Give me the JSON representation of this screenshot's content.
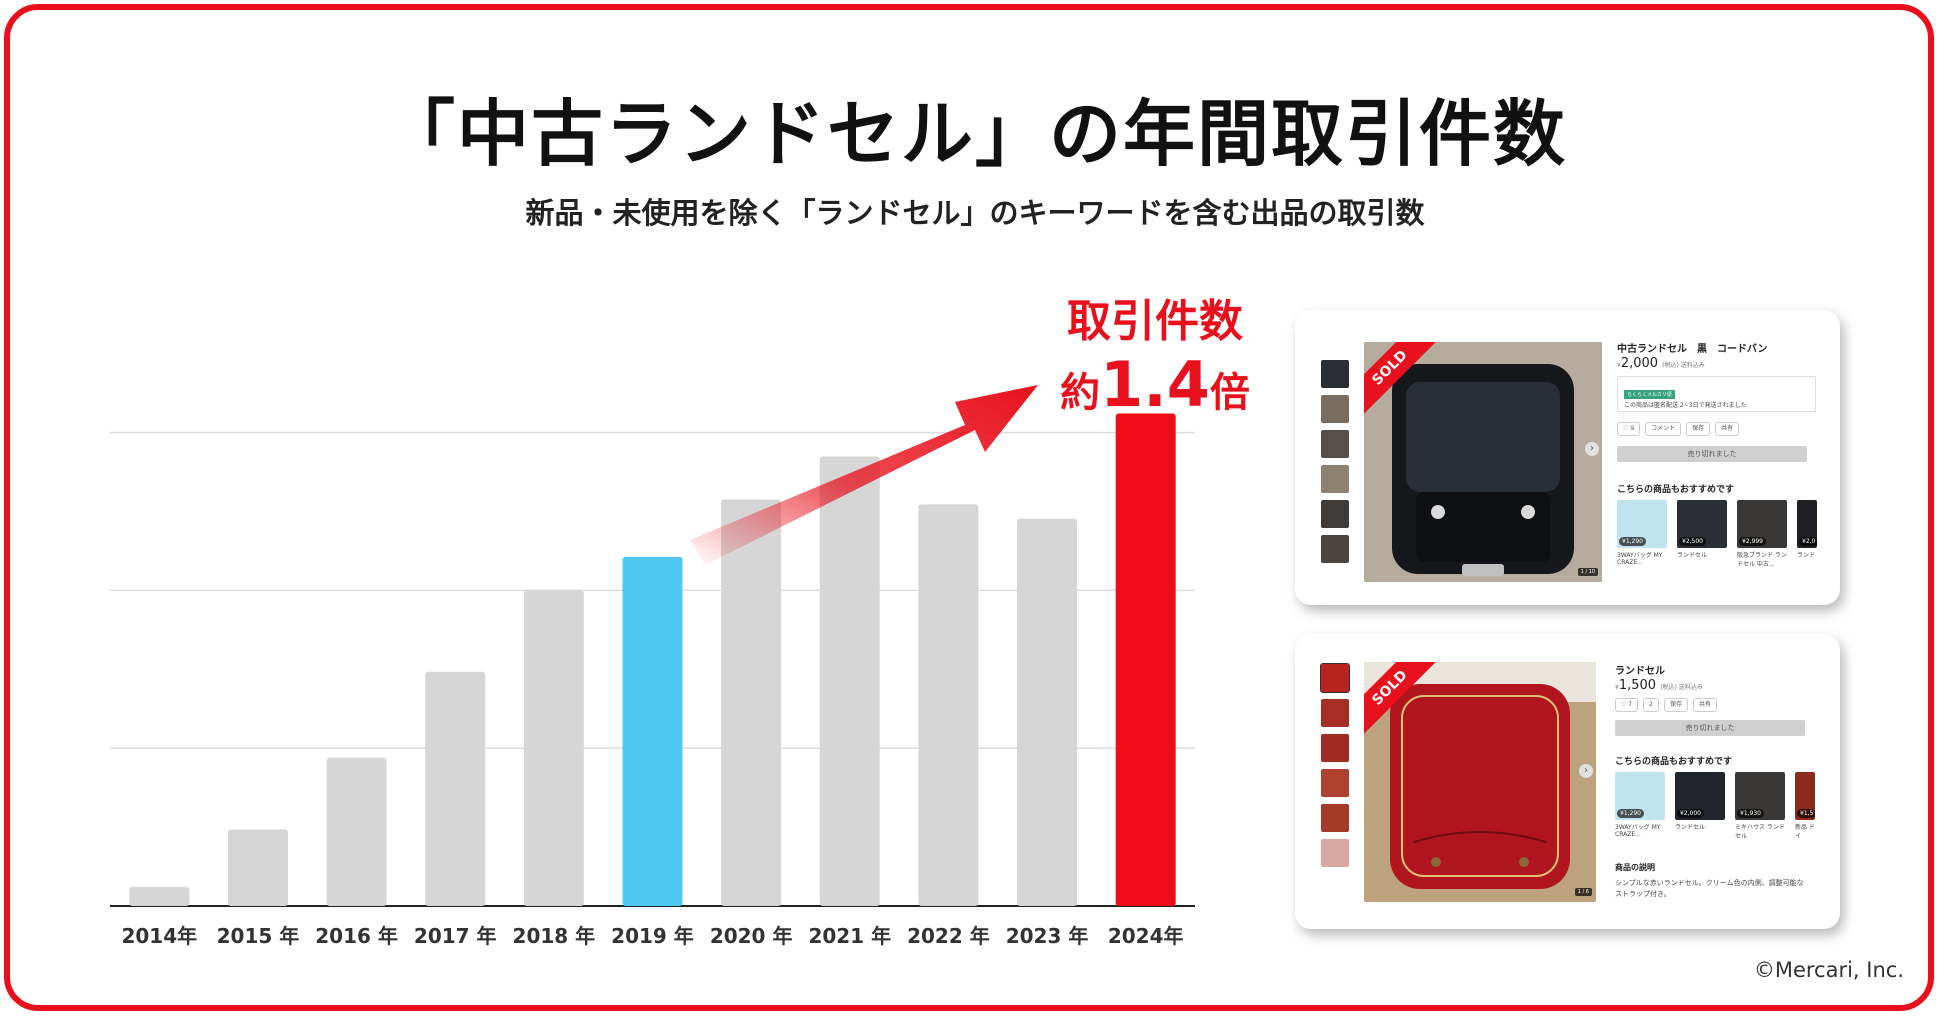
{
  "title": "「中古ランドセル」の年間取引件数",
  "subtitle": "新品・未使用を除く「ランドセル」のキーワードを含む出品の取引数",
  "annotation": {
    "line1": "取引件数",
    "prefix": "約",
    "value": "1.4",
    "suffix": "倍"
  },
  "colors": {
    "frame": "#e8101c",
    "bar_default": "#d6d6d6",
    "bar_2019": "#4fc8f5",
    "bar_2024": "#ef0c16",
    "arrow": "#e8101c"
  },
  "chart_data": {
    "type": "bar",
    "title": "「中古ランドセル」の年間取引件数",
    "categories": [
      "2014年",
      "2015 年",
      "2016 年",
      "2017 年",
      "2018 年",
      "2019 年",
      "2020 年",
      "2021 年",
      "2022 年",
      "2023 年",
      "2024年"
    ],
    "values": [
      0.4,
      1.6,
      3.1,
      4.9,
      6.6,
      7.3,
      8.5,
      9.4,
      8.4,
      8.1,
      10.3
    ],
    "highlight": {
      "2019 年": "#4fc8f5",
      "2024年": "#ef0c16"
    },
    "ylim": [
      0,
      11
    ],
    "gridlines": true,
    "ylabel": "",
    "xlabel": "",
    "y_axis_labels_shown": false
  },
  "card1": {
    "sold_label": "SOLD",
    "product_name": "中古ランドセル　黒　コードバン",
    "price_symbol": "¥",
    "price": "2,000",
    "price_note": "(税込) 送料込み",
    "shipping_badge": "らくらくメルカリ便",
    "shipping_text": "この商品は匿名配送 2~3日で発送されました",
    "buttons": [
      "♡ 9",
      "コメント",
      "保存",
      "共有"
    ],
    "sold_out_label": "売り切れました",
    "recommend_title": "こちらの商品もおすすめです",
    "recommendations": [
      {
        "price": "¥1,290",
        "label": "3WAYバッグ MY CRAZE..."
      },
      {
        "price": "¥2,500",
        "label": "ランドセル"
      },
      {
        "price": "¥2,999",
        "label": "阪急ブランド ランドセル 中古..."
      },
      {
        "price": "¥2,0",
        "label": "ランド"
      }
    ],
    "pager": "1 / 10"
  },
  "card2": {
    "sold_label": "SOLD",
    "product_name": "ランドセル",
    "price_symbol": "¥",
    "price": "1,500",
    "price_note": "(税込) 送料込み",
    "buttons": [
      "♡ 7",
      "2",
      "保存",
      "共有"
    ],
    "sold_out_label": "売り切れました",
    "recommend_title": "こちらの商品もおすすめです",
    "recommendations": [
      {
        "price": "¥1,290",
        "label": "3WAYバッグ MY CRAZE..."
      },
      {
        "price": "¥2,000",
        "label": "ランドセル"
      },
      {
        "price": "¥1,930",
        "label": "ミキハウス ランドセル"
      },
      {
        "price": "¥1,5",
        "label": "新品 ドイ"
      }
    ],
    "desc_title": "商品の説明",
    "desc_text": "シンプルな赤いランドセル。クリーム色の内側、調整可能なストラップ付き。",
    "pager": "1 / 6"
  },
  "copyright": "©Mercari, Inc."
}
